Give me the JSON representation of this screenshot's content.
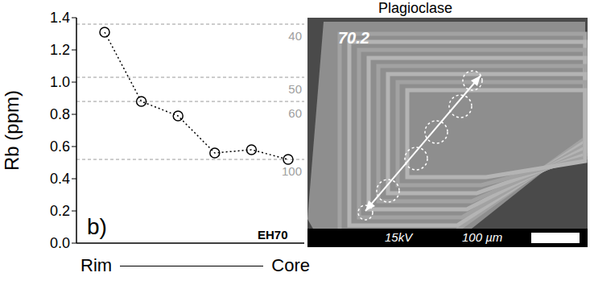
{
  "chart_data": {
    "type": "line",
    "y_label": "Rb (ppm)",
    "x_label_left": "Rim",
    "x_label_right": "Core",
    "categories": [
      null,
      null,
      null,
      null,
      null,
      null
    ],
    "values": [
      1.31,
      0.88,
      0.79,
      0.56,
      0.58,
      0.52
    ],
    "color": "#000000",
    "marker": "circle",
    "line_style": "dotted",
    "ylim": [
      0,
      1.4
    ],
    "yticks": [
      {
        "value": 0,
        "label": "0.0"
      },
      0.2,
      0.4,
      0.6,
      0.8,
      {
        "value": 1,
        "label": "1.0"
      },
      1.2,
      1.4
    ],
    "reference_lines": [
      {
        "value": 1.36,
        "label": "40"
      },
      {
        "value": 1.03,
        "label": "50"
      },
      {
        "value": 0.88,
        "label": "60"
      },
      {
        "value": 0.52,
        "label": "100"
      }
    ],
    "annotations": [
      "b)",
      "EH70"
    ]
  },
  "image": {
    "title": "Plagioclase",
    "label": "70.2",
    "scale_text": "15kV",
    "scale_bar_label": "100 µm"
  }
}
